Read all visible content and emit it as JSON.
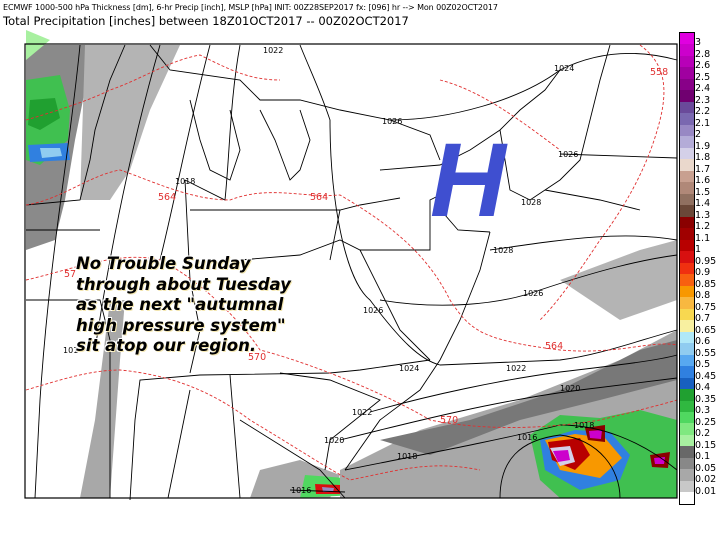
{
  "header": {
    "line1": "ECMWF 1000-500 hPa Thickness [dm], 6-hr Precip [inch], MSLP [hPa] INIT: 00Z28SEP2017 fx: [096] hr --> Mon 00Z02OCT2017",
    "line2": "Total Precipitation [inches] between 18Z01OCT2017 -- 00Z02OCT2017"
  },
  "overlay": {
    "high_symbol": "H",
    "high_color": "#3f4fd0",
    "note_lines": [
      "No Trouble Sunday",
      "through about Tuesday",
      "as the next \"autumnal",
      "high pressure system\"",
      "sit atop our region."
    ]
  },
  "isobar_labels": [
    "1022",
    "1024",
    "1026",
    "1026",
    "1018",
    "1028",
    "1028",
    "1026",
    "1026",
    "1024",
    "1022",
    "1020",
    "1022",
    "1020",
    "1018",
    "1018",
    "1016",
    "1016",
    "101"
  ],
  "thickness_labels": [
    "564",
    "564",
    "558",
    "57",
    "570",
    "564",
    "570"
  ],
  "colorbar": {
    "labels": [
      "3",
      "2.8",
      "2.6",
      "2.5",
      "2.4",
      "2.3",
      "2.2",
      "2.1",
      "2",
      "1.9",
      "1.8",
      "1.7",
      "1.6",
      "1.5",
      "1.4",
      "1.3",
      "1.2",
      "1.1",
      "1",
      "0.95",
      "0.9",
      "0.85",
      "0.8",
      "0.75",
      "0.7",
      "0.65",
      "0.6",
      "0.55",
      "0.5",
      "0.45",
      "0.4",
      "0.35",
      "0.3",
      "0.25",
      "0.2",
      "0.15",
      "0.1",
      "0.05",
      "0.02",
      "0.01"
    ],
    "colors": [
      "#e000e0",
      "#cc00cc",
      "#b800b8",
      "#a000a0",
      "#880088",
      "#700070",
      "#6a4a9a",
      "#7a68b0",
      "#9888c4",
      "#b4acd8",
      "#d4d0e8",
      "#ead8cc",
      "#c8a090",
      "#b08878",
      "#907060",
      "#6a4838",
      "#8a0000",
      "#a00000",
      "#b80000",
      "#d81010",
      "#f03010",
      "#f86010",
      "#f89800",
      "#f8b840",
      "#f8d850",
      "#f8f0a0",
      "#b0e8f8",
      "#90ccf0",
      "#58a8f0",
      "#3080e0",
      "#1860c0",
      "#20a030",
      "#30b840",
      "#50d860",
      "#80e880",
      "#a8f0a0",
      "#686868",
      "#888888",
      "#a8a8a8",
      "#c8c8c8",
      "#ffffff"
    ]
  }
}
